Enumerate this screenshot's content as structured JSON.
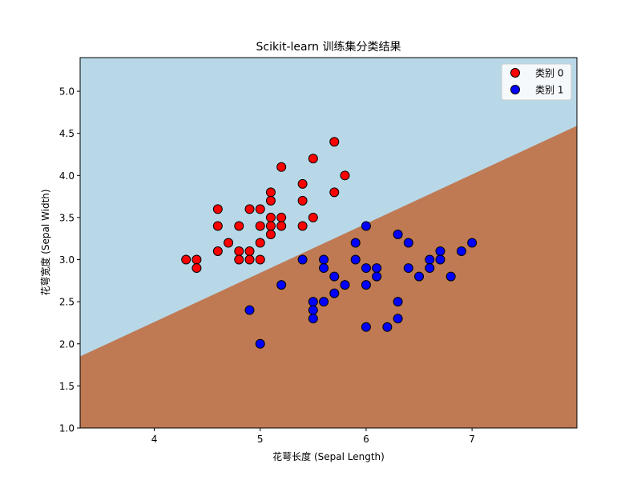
{
  "chart_data": {
    "type": "scatter",
    "title": "Scikit-learn 训练集分类结果",
    "xlabel": "花萼长度 (Sepal Length)",
    "ylabel": "花萼宽度 (Sepal Width)",
    "xlim": [
      3.3,
      7.99
    ],
    "ylim": [
      1.0,
      5.4
    ],
    "xticks": [
      4,
      5,
      6,
      7
    ],
    "yticks": [
      1.0,
      1.5,
      2.0,
      2.5,
      3.0,
      3.5,
      4.0,
      4.5,
      5.0
    ],
    "ytick_labels": [
      "1.0",
      "1.5",
      "2.0",
      "2.5",
      "3.0",
      "3.5",
      "4.0",
      "4.5",
      "5.0"
    ],
    "legend_position": "top-right",
    "decision_boundary": {
      "points": [
        [
          3.3,
          1.85
        ],
        [
          7.99,
          4.59
        ]
      ],
      "region_above_color": "#b8d8e8",
      "region_below_color": "#bf7a54",
      "region_above_class": "类别 0",
      "region_below_class": "类别 1"
    },
    "series": [
      {
        "name": "类别 0",
        "color": "#ff0000",
        "points": [
          [
            4.3,
            3.0
          ],
          [
            4.4,
            3.0
          ],
          [
            4.4,
            2.9
          ],
          [
            4.6,
            3.6
          ],
          [
            4.6,
            3.4
          ],
          [
            4.6,
            3.1
          ],
          [
            4.7,
            3.2
          ],
          [
            4.8,
            3.4
          ],
          [
            4.8,
            3.1
          ],
          [
            4.8,
            3.0
          ],
          [
            4.9,
            3.6
          ],
          [
            4.9,
            3.1
          ],
          [
            4.9,
            3.0
          ],
          [
            5.0,
            3.6
          ],
          [
            5.0,
            3.4
          ],
          [
            5.0,
            3.2
          ],
          [
            5.0,
            3.0
          ],
          [
            5.1,
            3.8
          ],
          [
            5.1,
            3.7
          ],
          [
            5.1,
            3.5
          ],
          [
            5.1,
            3.4
          ],
          [
            5.1,
            3.3
          ],
          [
            5.2,
            4.1
          ],
          [
            5.2,
            3.5
          ],
          [
            5.2,
            3.4
          ],
          [
            5.4,
            3.9
          ],
          [
            5.4,
            3.7
          ],
          [
            5.4,
            3.4
          ],
          [
            5.5,
            4.2
          ],
          [
            5.5,
            3.5
          ],
          [
            5.7,
            4.4
          ],
          [
            5.7,
            3.8
          ],
          [
            5.8,
            4.0
          ]
        ]
      },
      {
        "name": "类别 1",
        "color": "#0000ff",
        "points": [
          [
            4.9,
            2.4
          ],
          [
            5.0,
            2.0
          ],
          [
            5.2,
            2.7
          ],
          [
            5.4,
            3.0
          ],
          [
            5.5,
            2.5
          ],
          [
            5.5,
            2.4
          ],
          [
            5.5,
            2.3
          ],
          [
            5.6,
            3.0
          ],
          [
            5.6,
            2.9
          ],
          [
            5.6,
            2.5
          ],
          [
            5.7,
            2.8
          ],
          [
            5.7,
            2.6
          ],
          [
            5.8,
            2.7
          ],
          [
            5.9,
            3.2
          ],
          [
            5.9,
            3.0
          ],
          [
            6.0,
            3.4
          ],
          [
            6.0,
            2.9
          ],
          [
            6.0,
            2.7
          ],
          [
            6.0,
            2.2
          ],
          [
            6.1,
            2.9
          ],
          [
            6.1,
            2.8
          ],
          [
            6.2,
            2.2
          ],
          [
            6.3,
            3.3
          ],
          [
            6.3,
            2.5
          ],
          [
            6.3,
            2.3
          ],
          [
            6.4,
            3.2
          ],
          [
            6.4,
            2.9
          ],
          [
            6.5,
            2.8
          ],
          [
            6.6,
            3.0
          ],
          [
            6.6,
            2.9
          ],
          [
            6.7,
            3.1
          ],
          [
            6.7,
            3.0
          ],
          [
            6.8,
            2.8
          ],
          [
            6.9,
            3.1
          ],
          [
            7.0,
            3.2
          ]
        ]
      }
    ]
  }
}
